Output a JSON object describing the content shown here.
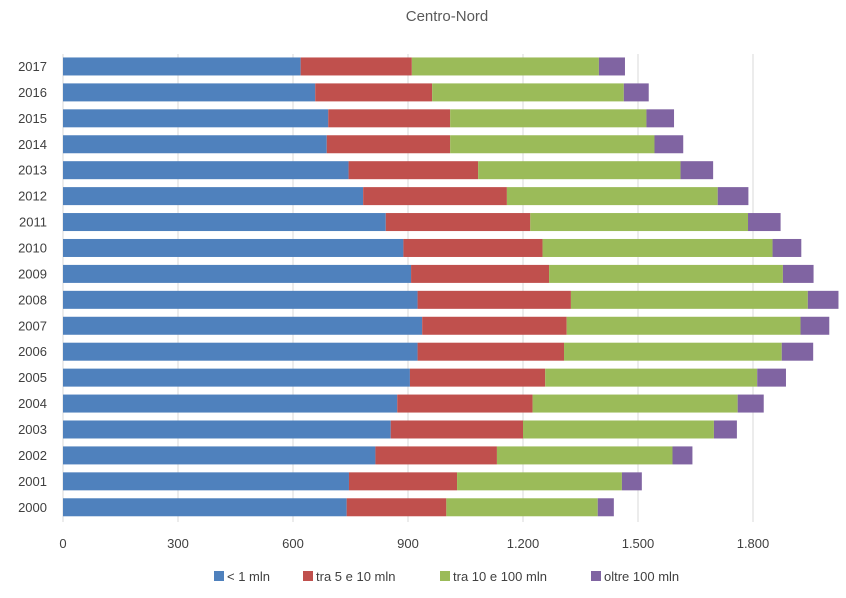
{
  "chart_data": {
    "type": "bar",
    "orientation": "horizontal",
    "stacked": true,
    "title": "Centro-Nord",
    "categories": [
      "2017",
      "2016",
      "2015",
      "2014",
      "2013",
      "2012",
      "2011",
      "2010",
      "2009",
      "2008",
      "2007",
      "2006",
      "2005",
      "2004",
      "2003",
      "2002",
      "2001",
      "2000"
    ],
    "series": [
      {
        "name": "< 1 mln",
        "color": "#4f81bd",
        "values": [
          620,
          658,
          692,
          688,
          745,
          783,
          842,
          888,
          908,
          925,
          937,
          925,
          905,
          872,
          855,
          815,
          746,
          740
        ]
      },
      {
        "name": "tra 5 e 10 mln",
        "color": "#c0504d",
        "values": [
          290,
          305,
          318,
          322,
          338,
          375,
          377,
          363,
          360,
          400,
          377,
          382,
          353,
          353,
          345,
          317,
          282,
          260
        ]
      },
      {
        "name": "tra 10 e 100 mln",
        "color": "#9bbb59",
        "values": [
          488,
          500,
          512,
          533,
          528,
          550,
          568,
          600,
          610,
          618,
          610,
          568,
          553,
          535,
          498,
          458,
          430,
          395
        ]
      },
      {
        "name": "oltre 100 mln",
        "color": "#8064a2",
        "values": [
          68,
          65,
          72,
          75,
          85,
          80,
          85,
          75,
          80,
          80,
          75,
          82,
          75,
          68,
          60,
          52,
          52,
          42
        ]
      }
    ],
    "xlim": [
      0,
      1900
    ],
    "xticks": [
      0,
      300,
      600,
      900,
      1200,
      1500,
      1800
    ],
    "xtick_labels": [
      "0",
      "300",
      "600",
      "900",
      "1.200",
      "1.500",
      "1.800"
    ],
    "grid": "vertical",
    "legend_position": "bottom"
  }
}
